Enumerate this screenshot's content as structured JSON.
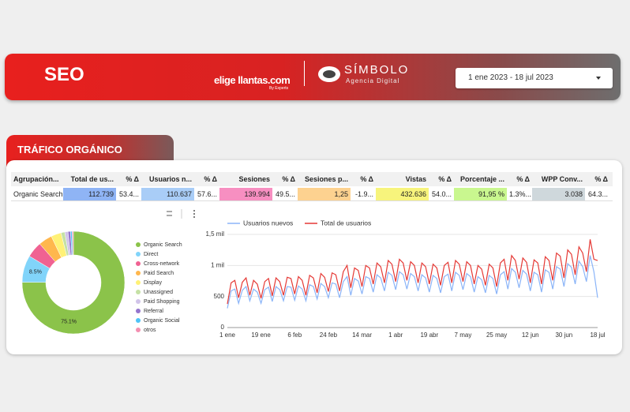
{
  "header": {
    "title": "SEO",
    "brand": "elige llantas.com",
    "brand_tagline": "By Experts",
    "agency": "SÍMBOLO",
    "agency_tagline": "Agencia Digital",
    "date_range": "1 ene 2023 - 18 jul 2023"
  },
  "section": {
    "title": "TRÁFICO ORGÁNICO"
  },
  "table": {
    "headers": [
      "Agrupación...",
      "Total de us...",
      "% Δ",
      "Usuarios n...",
      "% Δ",
      "Sesiones",
      "% Δ",
      "Sesiones p...",
      "% Δ",
      "Vistas",
      "% Δ",
      "Porcentaje ...",
      "% Δ",
      "WPP Conv...",
      "% Δ"
    ],
    "rows": [
      [
        "Organic Search",
        "112.739",
        "53.4...",
        "110.637",
        "57.6...",
        "139.994",
        "49.5...",
        "1,25",
        "-1.9...",
        "432.636",
        "54.0...",
        "91,95 %",
        "1.3%...",
        "3.038",
        "64.3..."
      ]
    ]
  },
  "chart_data": [
    {
      "type": "pie",
      "donut": true,
      "categories": [
        "Organic Search",
        "Direct",
        "Cross-network",
        "Paid Search",
        "Display",
        "Unassigned",
        "Paid Shopping",
        "Referral",
        "Organic Social",
        "otros"
      ],
      "values": [
        75.1,
        8.5,
        5.0,
        4.3,
        3.2,
        1.2,
        1.0,
        0.8,
        0.5,
        0.4
      ],
      "value_labels": [
        "75.1%",
        "8.5%",
        null,
        null,
        null,
        null,
        null,
        null,
        null,
        null
      ],
      "colors": [
        "#8bc34a",
        "#81d4fa",
        "#f06292",
        "#ffb74d",
        "#fff176",
        "#c5e1a5",
        "#d1c4e9",
        "#9575cd",
        "#4fc3f7",
        "#f48fb1"
      ]
    },
    {
      "type": "line",
      "categories": [
        "1 ene",
        null,
        null,
        null,
        null,
        null,
        null,
        null,
        null,
        "19 ene",
        null,
        null,
        null,
        null,
        null,
        null,
        null,
        null,
        "6 feb",
        null,
        null,
        null,
        null,
        null,
        null,
        null,
        null,
        "24 feb",
        null,
        null,
        null,
        null,
        null,
        null,
        null,
        null,
        "14 mar",
        null,
        null,
        null,
        null,
        null,
        null,
        null,
        null,
        "1 abr",
        null,
        null,
        null,
        null,
        null,
        null,
        null,
        null,
        "19 abr",
        null,
        null,
        null,
        null,
        null,
        null,
        null,
        null,
        "7 may",
        null,
        null,
        null,
        null,
        null,
        null,
        null,
        null,
        "25 may",
        null,
        null,
        null,
        null,
        null,
        null,
        null,
        null,
        "12 jun",
        null,
        null,
        null,
        null,
        null,
        null,
        null,
        null,
        "30 jun",
        null,
        null,
        null,
        null,
        null,
        null,
        null,
        null,
        "18 jul"
      ],
      "series": [
        {
          "name": "Usuarios nuevos",
          "color": "#8ab4f8",
          "values": [
            310,
            590,
            620,
            390,
            600,
            660,
            430,
            620,
            570,
            390,
            610,
            650,
            420,
            660,
            610,
            430,
            660,
            650,
            440,
            670,
            620,
            430,
            690,
            660,
            460,
            710,
            660,
            480,
            720,
            700,
            480,
            740,
            820,
            520,
            790,
            750,
            540,
            820,
            790,
            570,
            850,
            800,
            590,
            890,
            840,
            610,
            900,
            850,
            620,
            870,
            820,
            590,
            850,
            800,
            570,
            840,
            790,
            560,
            820,
            860,
            590,
            890,
            840,
            610,
            870,
            820,
            570,
            820,
            770,
            560,
            840,
            790,
            540,
            850,
            900,
            620,
            950,
            890,
            640,
            920,
            860,
            590,
            890,
            850,
            570,
            930,
            890,
            620,
            980,
            940,
            660,
            1030,
            970,
            700,
            1070,
            980,
            740,
            1160,
            900,
            480
          ]
        },
        {
          "name": "Total de usuarios",
          "color": "#e53935",
          "values": [
            380,
            720,
            760,
            480,
            730,
            800,
            520,
            760,
            700,
            470,
            740,
            790,
            510,
            800,
            740,
            520,
            810,
            790,
            540,
            820,
            760,
            520,
            840,
            800,
            560,
            870,
            810,
            580,
            880,
            850,
            590,
            900,
            1000,
            640,
            960,
            920,
            660,
            1000,
            960,
            700,
            1040,
            980,
            720,
            1080,
            1020,
            740,
            1100,
            1040,
            760,
            1060,
            1000,
            720,
            1040,
            980,
            700,
            1020,
            960,
            680,
            1000,
            1050,
            720,
            1080,
            1020,
            740,
            1060,
            1000,
            700,
            1000,
            940,
            680,
            1020,
            960,
            660,
            1040,
            1100,
            760,
            1160,
            1080,
            780,
            1120,
            1050,
            720,
            1090,
            1040,
            700,
            1140,
            1080,
            760,
            1200,
            1150,
            800,
            1250,
            1180,
            850,
            1300,
            1200,
            900,
            1420,
            1100,
            1080
          ]
        }
      ],
      "ylim": [
        0,
        1500
      ],
      "yticks": [
        0,
        500,
        {
          "value": 1000,
          "label": "1 mil"
        },
        {
          "value": 1500,
          "label": "1,5 mil"
        }
      ],
      "grid": true
    }
  ]
}
